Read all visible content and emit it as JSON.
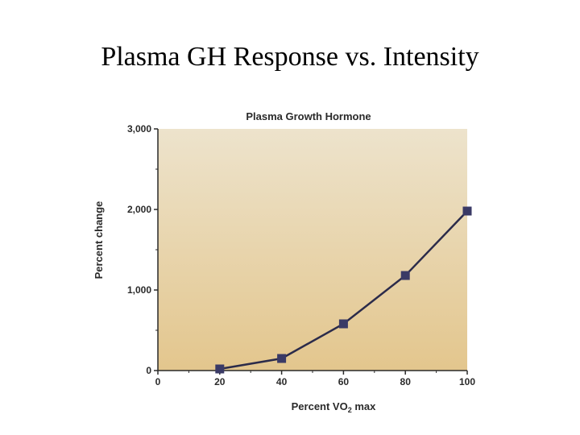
{
  "slide": {
    "title": "Plasma GH Response vs. Intensity"
  },
  "chart_data": {
    "type": "line",
    "title": "Plasma Growth Hormone",
    "xlabel": "Percent VO",
    "xlabel_subscript": "2",
    "xlabel_suffix": " max",
    "ylabel": "Percent change",
    "xlim": [
      0,
      100
    ],
    "ylim": [
      0,
      3000
    ],
    "x_ticks": [
      0,
      20,
      40,
      60,
      80,
      100
    ],
    "x_tick_labels": [
      "0",
      "20",
      "40",
      "60",
      "80",
      "100"
    ],
    "y_ticks": [
      0,
      1000,
      2000,
      3000
    ],
    "y_tick_labels": [
      "0",
      "1,000",
      "2,000",
      "3,000"
    ],
    "series": [
      {
        "x": [
          20,
          40,
          60,
          80,
          100
        ],
        "y": [
          20,
          150,
          580,
          1180,
          1980
        ]
      }
    ],
    "grid": false,
    "legend": "none",
    "colors": {
      "background_top": "#ede3cc",
      "background_bottom": "#e3c68d",
      "line": "#2b2b4a",
      "marker": "#3a3a66",
      "axis": "#2a2a2a"
    }
  }
}
